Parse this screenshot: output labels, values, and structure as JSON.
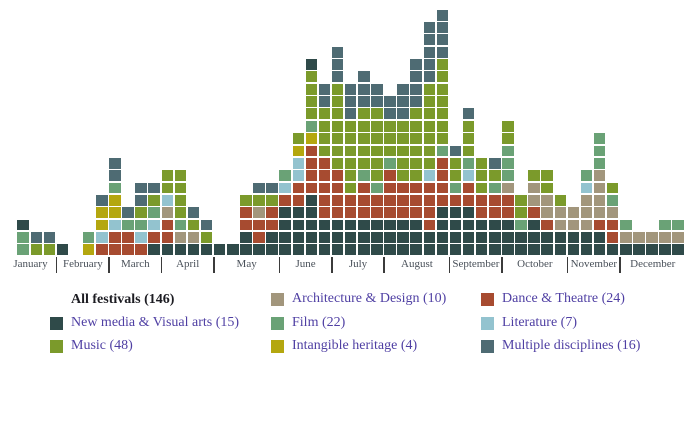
{
  "title": "All festivals (146)",
  "chart_data": {
    "type": "waffle-histogram",
    "description": "Weekly timeline of festivals over one year; each small square is one festival active that week, stacked per week-column and coloured by festival category.",
    "title": "All festivals (146)",
    "total_label": "All festivals (146)",
    "total": 146,
    "legend_position": "bottom",
    "months": [
      {
        "label": "January",
        "cols": 4
      },
      {
        "label": "February",
        "cols": 4
      },
      {
        "label": "March",
        "cols": 4
      },
      {
        "label": "April",
        "cols": 4
      },
      {
        "label": "May",
        "cols": 5
      },
      {
        "label": "June",
        "cols": 4
      },
      {
        "label": "July",
        "cols": 4
      },
      {
        "label": "August",
        "cols": 5
      },
      {
        "label": "September",
        "cols": 4
      },
      {
        "label": "October",
        "cols": 5
      },
      {
        "label": "November",
        "cols": 4
      },
      {
        "label": "December",
        "cols": 5
      }
    ],
    "categories": [
      {
        "code": "N",
        "label": "New media & Visual arts (15)",
        "count": 15,
        "color": "#2f4a49"
      },
      {
        "code": "M",
        "label": "Music (48)",
        "count": 48,
        "color": "#7b9a2b"
      },
      {
        "code": "A",
        "label": "Architecture & Design (10)",
        "count": 10,
        "color": "#a2967c"
      },
      {
        "code": "F",
        "label": "Film (22)",
        "count": 22,
        "color": "#6aa276"
      },
      {
        "code": "I",
        "label": "Intangible heritage (4)",
        "count": 4,
        "color": "#b4a70f"
      },
      {
        "code": "D",
        "label": "Dance & Theatre (24)",
        "count": 24,
        "color": "#a74b30"
      },
      {
        "code": "L",
        "label": "Literature (7)",
        "count": 7,
        "color": "#93c3cf"
      },
      {
        "code": "X",
        "label": "Multiple disciplines (16)",
        "count": 16,
        "color": "#4e6b73"
      }
    ],
    "legend_layout": [
      [
        "TITLE",
        "N",
        "M"
      ],
      [
        "A",
        "F",
        "I"
      ],
      [
        "D",
        "L",
        "X"
      ]
    ],
    "grid": [
      [],
      [
        "F",
        "F",
        "N"
      ],
      [
        "M",
        "X"
      ],
      [
        "M",
        "X"
      ],
      [
        "N"
      ],
      [],
      [
        "I",
        "F"
      ],
      [
        "D",
        "L",
        "I",
        "I",
        "X"
      ],
      [
        "D",
        "D",
        "L",
        "I",
        "I",
        "F",
        "X",
        "X"
      ],
      [
        "D",
        "D",
        "F",
        "X"
      ],
      [
        "D",
        "L",
        "F",
        "M",
        "X",
        "X"
      ],
      [
        "N",
        "D",
        "L",
        "F",
        "M",
        "X"
      ],
      [
        "N",
        "D",
        "D",
        "A",
        "L",
        "M",
        "M"
      ],
      [
        "N",
        "A",
        "F",
        "M",
        "M",
        "M",
        "M"
      ],
      [
        "N",
        "A",
        "M",
        "X"
      ],
      [
        "N",
        "M",
        "X"
      ],
      [
        "N"
      ],
      [
        "N"
      ],
      [
        "N",
        "N",
        "D",
        "D",
        "M"
      ],
      [
        "N",
        "D",
        "D",
        "A",
        "M",
        "X"
      ],
      [
        "N",
        "N",
        "D",
        "D",
        "M",
        "X"
      ],
      [
        "N",
        "N",
        "N",
        "N",
        "D",
        "L",
        "F"
      ],
      [
        "N",
        "N",
        "N",
        "N",
        "D",
        "D",
        "L",
        "L",
        "I",
        "M"
      ],
      [
        "N",
        "N",
        "N",
        "N",
        "N",
        "D",
        "D",
        "D",
        "D",
        "I",
        "F",
        "M",
        "M",
        "M",
        "M",
        "N"
      ],
      [
        "N",
        "N",
        "N",
        "D",
        "D",
        "D",
        "D",
        "D",
        "M",
        "M",
        "M",
        "M",
        "X",
        "X"
      ],
      [
        "N",
        "N",
        "N",
        "D",
        "D",
        "D",
        "D",
        "M",
        "M",
        "M",
        "M",
        "M",
        "M",
        "M",
        "X",
        "X",
        "X"
      ],
      [
        "N",
        "N",
        "N",
        "D",
        "D",
        "M",
        "M",
        "M",
        "M",
        "M",
        "M",
        "X",
        "X",
        "X"
      ],
      [
        "N",
        "N",
        "N",
        "D",
        "D",
        "D",
        "F",
        "M",
        "M",
        "M",
        "M",
        "M",
        "X",
        "X",
        "X"
      ],
      [
        "N",
        "N",
        "N",
        "D",
        "D",
        "F",
        "M",
        "M",
        "M",
        "M",
        "M",
        "M",
        "X",
        "X"
      ],
      [
        "N",
        "N",
        "N",
        "D",
        "D",
        "D",
        "D",
        "F",
        "M",
        "M",
        "M",
        "X",
        "X"
      ],
      [
        "N",
        "N",
        "N",
        "D",
        "D",
        "D",
        "M",
        "M",
        "M",
        "M",
        "M",
        "X",
        "X",
        "X"
      ],
      [
        "N",
        "N",
        "N",
        "D",
        "D",
        "D",
        "M",
        "M",
        "M",
        "M",
        "M",
        "M",
        "X",
        "X",
        "X",
        "X"
      ],
      [
        "N",
        "N",
        "D",
        "D",
        "D",
        "D",
        "L",
        "M",
        "M",
        "M",
        "M",
        "M",
        "M",
        "M",
        "X",
        "X",
        "X",
        "X",
        "X"
      ],
      [
        "N",
        "N",
        "N",
        "N",
        "D",
        "D",
        "D",
        "D",
        "F",
        "M",
        "M",
        "M",
        "M",
        "M",
        "M",
        "M",
        "X",
        "X",
        "X",
        "X"
      ],
      [
        "N",
        "N",
        "N",
        "N",
        "D",
        "F",
        "M",
        "M",
        "X"
      ],
      [
        "N",
        "N",
        "N",
        "N",
        "D",
        "D",
        "L",
        "F",
        "M",
        "M",
        "M",
        "X"
      ],
      [
        "N",
        "N",
        "N",
        "D",
        "D",
        "M",
        "M",
        "M"
      ],
      [
        "N",
        "N",
        "N",
        "D",
        "D",
        "F",
        "M",
        "X"
      ],
      [
        "N",
        "N",
        "N",
        "D",
        "D",
        "A",
        "F",
        "F",
        "F",
        "M",
        "M"
      ],
      [
        "N",
        "N",
        "F",
        "M",
        "M"
      ],
      [
        "N",
        "N",
        "N",
        "D",
        "A",
        "A",
        "M"
      ],
      [
        "N",
        "N",
        "D",
        "A",
        "A",
        "M",
        "M"
      ],
      [
        "N",
        "N",
        "A",
        "A",
        "M"
      ],
      [
        "N",
        "N",
        "A",
        "A"
      ],
      [
        "N",
        "N",
        "A",
        "A",
        "A",
        "L",
        "F"
      ],
      [
        "N",
        "N",
        "D",
        "A",
        "A",
        "A",
        "A",
        "F",
        "F",
        "F"
      ],
      [
        "N",
        "D",
        "D",
        "A",
        "F",
        "M"
      ],
      [
        "N",
        "A",
        "F"
      ],
      [
        "N",
        "A"
      ],
      [
        "N",
        "A"
      ],
      [
        "N",
        "A",
        "F"
      ],
      [
        "N",
        "A",
        "F"
      ]
    ],
    "axis": {
      "tick_color": "#3b3b3b",
      "month_label_color": "#495059"
    }
  },
  "legend_styles": {
    "title_color": "#1c1c22",
    "text_color": "#4f3fa3"
  }
}
